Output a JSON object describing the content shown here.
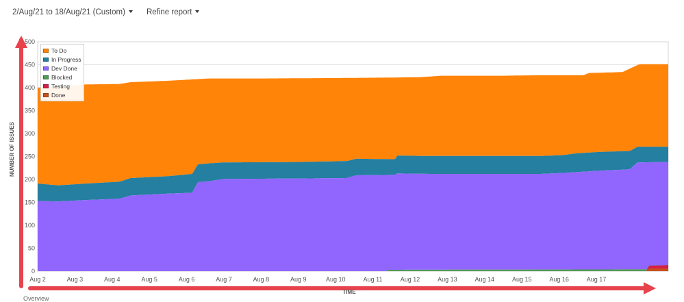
{
  "toolbar": {
    "date_range_label": "2/Aug/21 to 18/Aug/21 (Custom)",
    "refine_label": "Refine report"
  },
  "annotations": {
    "arrow_color": "#e8434d"
  },
  "footer_text": "Overview",
  "chart_data": {
    "type": "area",
    "stacked": true,
    "xlabel": "TIME",
    "ylabel": "NUMBER OF ISSUES",
    "ylim": [
      0,
      500
    ],
    "yticks": [
      0,
      50,
      100,
      150,
      200,
      250,
      300,
      350,
      400,
      450,
      500
    ],
    "xlim": [
      0,
      16.93
    ],
    "xtick_labels": [
      "Aug 2",
      "Aug 3",
      "Aug 4",
      "Aug 5",
      "Aug 6",
      "Aug 7",
      "Aug 8",
      "Aug 9",
      "Aug 10",
      "Aug 11",
      "Aug 12",
      "Aug 13",
      "Aug 14",
      "Aug 15",
      "Aug 16",
      "Aug 17"
    ],
    "grid": "horizontal",
    "legend_position": "top-left",
    "series": [
      {
        "name": "To Do",
        "color": "#ff8408",
        "points": [
          [
            0,
            400
          ],
          [
            0.55,
            402
          ],
          [
            1.3,
            407
          ],
          [
            2.2,
            408
          ],
          [
            2.5,
            412
          ],
          [
            3.5,
            415
          ],
          [
            4.15,
            418
          ],
          [
            4.6,
            420
          ],
          [
            6,
            420
          ],
          [
            8,
            421
          ],
          [
            9.5,
            422
          ],
          [
            10.3,
            423
          ],
          [
            10.85,
            426
          ],
          [
            12.5,
            426
          ],
          [
            13.4,
            427
          ],
          [
            14.65,
            427
          ],
          [
            14.8,
            432
          ],
          [
            15.7,
            434
          ],
          [
            16.15,
            451
          ],
          [
            16.93,
            451
          ]
        ]
      },
      {
        "name": "In Progress",
        "color": "#247fa0",
        "points": [
          [
            0,
            191
          ],
          [
            0.55,
            187
          ],
          [
            1.3,
            191
          ],
          [
            2.2,
            195
          ],
          [
            2.5,
            203
          ],
          [
            3.5,
            207
          ],
          [
            4.15,
            212
          ],
          [
            4.3,
            233
          ],
          [
            4.6,
            235
          ],
          [
            5,
            237
          ],
          [
            7,
            238
          ],
          [
            8.3,
            240
          ],
          [
            8.55,
            245
          ],
          [
            9.6,
            244
          ],
          [
            9.65,
            252
          ],
          [
            10.5,
            251
          ],
          [
            13.5,
            251
          ],
          [
            14.1,
            253
          ],
          [
            14.5,
            257
          ],
          [
            15.1,
            260
          ],
          [
            15.9,
            262
          ],
          [
            16.1,
            271
          ],
          [
            16.93,
            271
          ]
        ]
      },
      {
        "name": "Dev Done",
        "color": "#9166ff",
        "points": [
          [
            0,
            153
          ],
          [
            0.55,
            152
          ],
          [
            1.3,
            155
          ],
          [
            2.2,
            158
          ],
          [
            2.5,
            165
          ],
          [
            3.5,
            169
          ],
          [
            4.15,
            171
          ],
          [
            4.3,
            194
          ],
          [
            4.6,
            196
          ],
          [
            5,
            201
          ],
          [
            7,
            202
          ],
          [
            8.3,
            203
          ],
          [
            8.55,
            209
          ],
          [
            9.6,
            210
          ],
          [
            9.65,
            213
          ],
          [
            10.5,
            212
          ],
          [
            13.5,
            212
          ],
          [
            14.1,
            214
          ],
          [
            14.5,
            216
          ],
          [
            15.1,
            219
          ],
          [
            15.9,
            222
          ],
          [
            16.1,
            237
          ],
          [
            16.93,
            238
          ]
        ]
      },
      {
        "name": "Blocked",
        "color": "#4f9a55",
        "points": [
          [
            0,
            0
          ],
          [
            9.35,
            0
          ],
          [
            9.4,
            3
          ],
          [
            16.93,
            4
          ]
        ]
      },
      {
        "name": "Testing",
        "color": "#d41f47",
        "points": [
          [
            0,
            0
          ],
          [
            16.35,
            0
          ],
          [
            16.4,
            12
          ],
          [
            16.93,
            13
          ]
        ]
      },
      {
        "name": "Done",
        "color": "#c8501c",
        "points": [
          [
            0,
            0
          ],
          [
            16.35,
            0
          ],
          [
            16.4,
            6
          ],
          [
            16.93,
            6
          ]
        ]
      }
    ]
  }
}
